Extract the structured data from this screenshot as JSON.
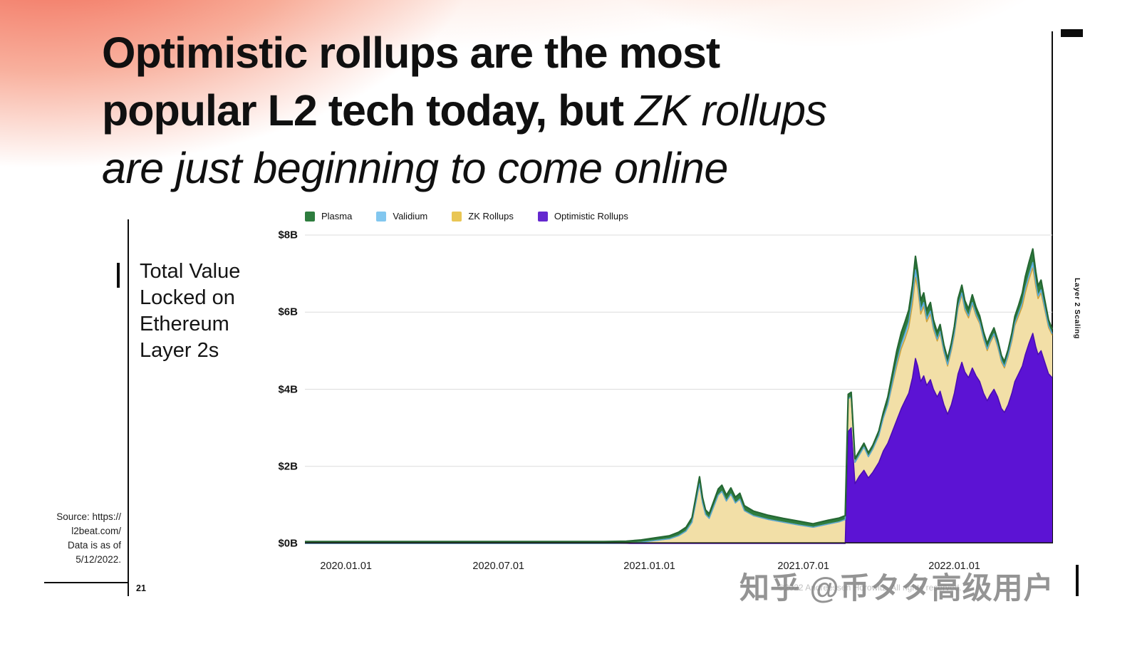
{
  "slide": {
    "title": {
      "line1_bold": "Optimistic rollups are the most",
      "line2_bold": "popular L2 tech today, but ",
      "line2_italic": "ZK rollups",
      "line3_italic": "are just beginning to come online"
    },
    "side_label": "Layer 2 Scaling",
    "page_number": "21",
    "copyright": "©2022 Andreessen Horowitz. All rights reserved.",
    "watermark": "知乎 @币タタ高级用户",
    "chart_heading": {
      "line1": "Total Value",
      "line2": "Locked on",
      "line3": "Ethereum",
      "line4": "Layer 2s"
    },
    "source": {
      "line1": "Source: https://",
      "line2": "l2beat.com/",
      "line3": "Data is as of",
      "line4": "5/12/2022."
    }
  },
  "legend": {
    "items": [
      {
        "label": "Plasma",
        "color": "#2e7d3e"
      },
      {
        "label": "Validium",
        "color": "#82c7ef"
      },
      {
        "label": "ZK Rollups",
        "color": "#e9c654"
      },
      {
        "label": "Optimistic Rollups",
        "color": "#6428cf"
      }
    ]
  },
  "chart_data": {
    "type": "area",
    "stacked": true,
    "title": "Total Value Locked on Ethereum Layer 2s",
    "unit": "$B",
    "ylim": [
      0,
      8
    ],
    "y_ticks": [
      {
        "label": "$8B",
        "value": 8
      },
      {
        "label": "$6B",
        "value": 6
      },
      {
        "label": "$4B",
        "value": 4
      },
      {
        "label": "$2B",
        "value": 2
      },
      {
        "label": "$0B",
        "value": 0
      }
    ],
    "y_gridlines": [
      2,
      4,
      6,
      8
    ],
    "x_ticks": [
      {
        "label": "2020.01.01",
        "f": 0.055
      },
      {
        "label": "2020.07.01",
        "f": 0.259
      },
      {
        "label": "2021.01.01",
        "f": 0.461
      },
      {
        "label": "2021.07.01",
        "f": 0.667
      },
      {
        "label": "2022.01.01",
        "f": 0.869
      }
    ],
    "series": [
      {
        "name": "Optimistic Rollups",
        "fill": "#5c13d4",
        "stroke": "#4a0cb2"
      },
      {
        "name": "ZK Rollups",
        "fill": "#f2dfa7",
        "stroke": "#cfa23a"
      },
      {
        "name": "Validium",
        "fill": "#82c7ef",
        "stroke": "#58a8d8"
      },
      {
        "name": "Plasma",
        "fill": "#2e7d3e",
        "stroke": "#256733"
      }
    ],
    "columns": [
      "x_fraction",
      "Optimistic Rollups",
      "ZK Rollups",
      "Validium",
      "Plasma"
    ],
    "points": [
      [
        0.0,
        0,
        0,
        0,
        0.05
      ],
      [
        0.05,
        0,
        0,
        0,
        0.05
      ],
      [
        0.1,
        0,
        0,
        0,
        0.05
      ],
      [
        0.15,
        0,
        0,
        0,
        0.05
      ],
      [
        0.2,
        0,
        0,
        0,
        0.05
      ],
      [
        0.25,
        0,
        0,
        0,
        0.05
      ],
      [
        0.3,
        0,
        0,
        0,
        0.05
      ],
      [
        0.35,
        0,
        0,
        0,
        0.05
      ],
      [
        0.4,
        0,
        0,
        0,
        0.05
      ],
      [
        0.43,
        0,
        0.01,
        0,
        0.05
      ],
      [
        0.45,
        0,
        0.03,
        0,
        0.06
      ],
      [
        0.47,
        0,
        0.08,
        0,
        0.07
      ],
      [
        0.488,
        0,
        0.12,
        0,
        0.08
      ],
      [
        0.5,
        0,
        0.2,
        0,
        0.09
      ],
      [
        0.51,
        0,
        0.32,
        0,
        0.1
      ],
      [
        0.518,
        0,
        0.55,
        0,
        0.12
      ],
      [
        0.524,
        0,
        1.15,
        0,
        0.15
      ],
      [
        0.528,
        0,
        1.55,
        0,
        0.18
      ],
      [
        0.532,
        0,
        1.05,
        0,
        0.14
      ],
      [
        0.536,
        0,
        0.75,
        0,
        0.12
      ],
      [
        0.541,
        0,
        0.65,
        0,
        0.12
      ],
      [
        0.547,
        0,
        0.95,
        0,
        0.14
      ],
      [
        0.553,
        0,
        1.25,
        0,
        0.16
      ],
      [
        0.558,
        0,
        1.35,
        0,
        0.16
      ],
      [
        0.564,
        0,
        1.1,
        0,
        0.15
      ],
      [
        0.57,
        0,
        1.28,
        0,
        0.16
      ],
      [
        0.576,
        0,
        1.05,
        0,
        0.15
      ],
      [
        0.582,
        0,
        1.15,
        0,
        0.15
      ],
      [
        0.588,
        0,
        0.85,
        0,
        0.13
      ],
      [
        0.6,
        0,
        0.72,
        0,
        0.12
      ],
      [
        0.62,
        0,
        0.62,
        0,
        0.11
      ],
      [
        0.64,
        0,
        0.55,
        0,
        0.1
      ],
      [
        0.66,
        0,
        0.48,
        0,
        0.1
      ],
      [
        0.68,
        0,
        0.42,
        0,
        0.09
      ],
      [
        0.7,
        0,
        0.5,
        0,
        0.1
      ],
      [
        0.715,
        0,
        0.56,
        0,
        0.1
      ],
      [
        0.723,
        0,
        0.62,
        0,
        0.1
      ],
      [
        0.727,
        2.9,
        0.85,
        0,
        0.12
      ],
      [
        0.731,
        3.0,
        0.8,
        0,
        0.12
      ],
      [
        0.736,
        1.55,
        0.55,
        0,
        0.1
      ],
      [
        0.742,
        1.75,
        0.55,
        0,
        0.1
      ],
      [
        0.748,
        1.9,
        0.6,
        0,
        0.1
      ],
      [
        0.754,
        1.7,
        0.55,
        0,
        0.1
      ],
      [
        0.76,
        1.85,
        0.6,
        0,
        0.1
      ],
      [
        0.768,
        2.1,
        0.7,
        0,
        0.12
      ],
      [
        0.774,
        2.4,
        0.85,
        0,
        0.15
      ],
      [
        0.78,
        2.6,
        1.0,
        0,
        0.2
      ],
      [
        0.786,
        2.9,
        1.2,
        0.05,
        0.25
      ],
      [
        0.792,
        3.2,
        1.4,
        0.1,
        0.3
      ],
      [
        0.798,
        3.5,
        1.55,
        0.12,
        0.3
      ],
      [
        0.803,
        3.7,
        1.6,
        0.15,
        0.3
      ],
      [
        0.808,
        3.9,
        1.7,
        0.15,
        0.3
      ],
      [
        0.813,
        4.3,
        1.9,
        0.18,
        0.32
      ],
      [
        0.817,
        4.8,
        2.1,
        0.2,
        0.35
      ],
      [
        0.82,
        4.6,
        2.0,
        0.15,
        0.3
      ],
      [
        0.824,
        4.2,
        1.75,
        0.1,
        0.25
      ],
      [
        0.828,
        4.35,
        1.8,
        0.1,
        0.25
      ],
      [
        0.832,
        4.1,
        1.65,
        0.08,
        0.22
      ],
      [
        0.837,
        4.25,
        1.7,
        0.08,
        0.22
      ],
      [
        0.841,
        4.0,
        1.55,
        0.05,
        0.2
      ],
      [
        0.846,
        3.8,
        1.45,
        0.05,
        0.18
      ],
      [
        0.85,
        3.95,
        1.5,
        0.05,
        0.18
      ],
      [
        0.855,
        3.6,
        1.35,
        0.04,
        0.16
      ],
      [
        0.86,
        3.35,
        1.25,
        0.04,
        0.15
      ],
      [
        0.865,
        3.6,
        1.4,
        0.04,
        0.16
      ],
      [
        0.869,
        3.9,
        1.5,
        0.05,
        0.18
      ],
      [
        0.874,
        4.4,
        1.7,
        0.05,
        0.2
      ],
      [
        0.879,
        4.7,
        1.75,
        0.05,
        0.2
      ],
      [
        0.883,
        4.45,
        1.6,
        0.05,
        0.2
      ],
      [
        0.888,
        4.3,
        1.55,
        0.05,
        0.18
      ],
      [
        0.893,
        4.55,
        1.65,
        0.05,
        0.2
      ],
      [
        0.898,
        4.35,
        1.55,
        0.05,
        0.18
      ],
      [
        0.903,
        4.2,
        1.5,
        0.04,
        0.16
      ],
      [
        0.908,
        3.9,
        1.4,
        0.04,
        0.15
      ],
      [
        0.913,
        3.7,
        1.3,
        0.04,
        0.14
      ],
      [
        0.917,
        3.85,
        1.35,
        0.04,
        0.15
      ],
      [
        0.922,
        4.0,
        1.4,
        0.04,
        0.15
      ],
      [
        0.927,
        3.8,
        1.3,
        0.04,
        0.14
      ],
      [
        0.932,
        3.5,
        1.2,
        0.04,
        0.13
      ],
      [
        0.936,
        3.4,
        1.15,
        0.04,
        0.13
      ],
      [
        0.941,
        3.6,
        1.25,
        0.04,
        0.14
      ],
      [
        0.946,
        3.9,
        1.35,
        0.05,
        0.16
      ],
      [
        0.95,
        4.2,
        1.45,
        0.06,
        0.18
      ],
      [
        0.955,
        4.4,
        1.5,
        0.08,
        0.2
      ],
      [
        0.96,
        4.6,
        1.55,
        0.1,
        0.25
      ],
      [
        0.964,
        4.9,
        1.6,
        0.12,
        0.3
      ],
      [
        0.969,
        5.2,
        1.65,
        0.13,
        0.32
      ],
      [
        0.974,
        5.45,
        1.7,
        0.14,
        0.35
      ],
      [
        0.978,
        5.1,
        1.55,
        0.1,
        0.3
      ],
      [
        0.981,
        4.9,
        1.45,
        0.08,
        0.25
      ],
      [
        0.985,
        5.0,
        1.5,
        0.08,
        0.25
      ],
      [
        0.99,
        4.7,
        1.35,
        0.06,
        0.2
      ],
      [
        0.995,
        4.4,
        1.2,
        0.05,
        0.15
      ],
      [
        1.0,
        4.3,
        1.1,
        0.04,
        0.12
      ]
    ]
  }
}
